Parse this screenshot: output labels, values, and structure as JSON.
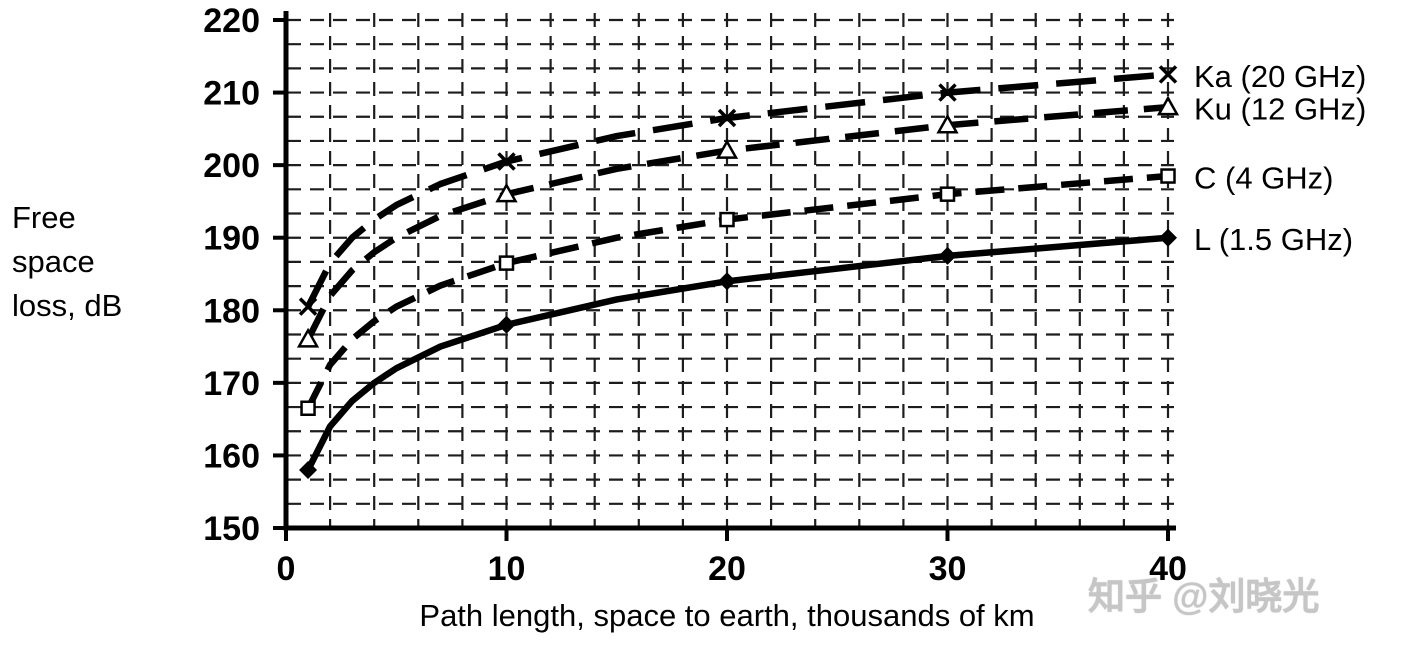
{
  "y_axis_label_lines": [
    "Free",
    "space",
    "loss, dB"
  ],
  "x_axis_title": "Path length, space to earth, thousands of km",
  "watermark": "知乎 @刘晓光",
  "chart_data": {
    "type": "line",
    "title": "",
    "xlabel": "Path length, space to earth, thousands of km",
    "ylabel": "Free space loss, dB",
    "xlim": [
      0,
      40
    ],
    "ylim": [
      150,
      220
    ],
    "x_ticks": [
      0,
      10,
      20,
      30,
      40
    ],
    "y_ticks": [
      150,
      160,
      170,
      180,
      190,
      200,
      210,
      220
    ],
    "grid": {
      "x_step": 2,
      "y_divisions": 21,
      "style": "dashed"
    },
    "legend_position": "right-of-curve-ends",
    "x": [
      1,
      2,
      3,
      4,
      5,
      7,
      10,
      15,
      20,
      30,
      40
    ],
    "marker_x": [
      1,
      10,
      20,
      30,
      40
    ],
    "series": [
      {
        "name": "Ka (20 GHz)",
        "marker": "x",
        "dash": "dash-long",
        "values": [
          180.5,
          186.5,
          190,
          192.5,
          194.5,
          197.4,
          200.5,
          204,
          206.5,
          210,
          212.5
        ]
      },
      {
        "name": "Ku (12 GHz)",
        "marker": "triangle",
        "dash": "dash-med",
        "values": [
          176,
          182,
          185.5,
          188,
          190,
          193,
          196,
          199.5,
          202,
          205.5,
          208
        ]
      },
      {
        "name": "C (4 GHz)",
        "marker": "square",
        "dash": "dash-short",
        "values": [
          166.5,
          172.5,
          176,
          178.5,
          180.5,
          183.4,
          186.5,
          190,
          192.5,
          196,
          198.5
        ]
      },
      {
        "name": "L (1.5 GHz)",
        "marker": "diamond",
        "dash": "solid",
        "values": [
          158,
          164,
          167.5,
          170,
          172,
          175,
          178,
          181.5,
          184,
          187.5,
          190
        ]
      }
    ]
  }
}
